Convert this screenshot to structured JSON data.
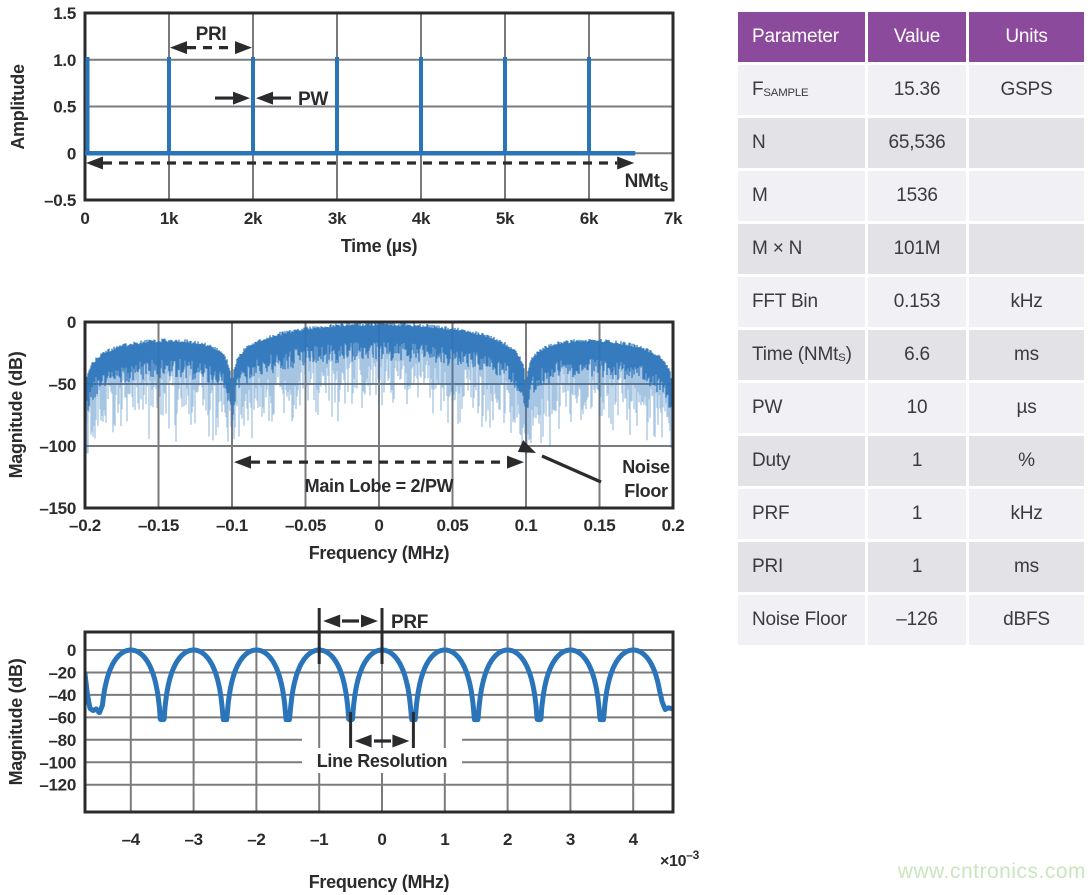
{
  "watermark": {
    "text": "www.cntronics.com",
    "color": "#C9E6BF"
  },
  "colors": {
    "blue": "#2A74BA",
    "grid": "#7A7B7E",
    "axis": "#2B2B2E",
    "text": "#2B2B2E",
    "purple": "#8C4A9C",
    "row_light": "#F1F0F4",
    "row_dark": "#E3E2E7",
    "header_text": "#FFFFFF"
  },
  "table": {
    "columns": [
      "Parameter",
      "Value",
      "Units"
    ],
    "rows": [
      {
        "param": [
          {
            "text": "F"
          },
          {
            "text": "SAMPLE",
            "sub": true
          }
        ],
        "value": "15.36",
        "units": "GSPS"
      },
      {
        "param": [
          {
            "text": "N"
          }
        ],
        "value": "65,536",
        "units": ""
      },
      {
        "param": [
          {
            "text": "M"
          }
        ],
        "value": "1536",
        "units": ""
      },
      {
        "param": [
          {
            "text": "M × N"
          }
        ],
        "value": "101M",
        "units": ""
      },
      {
        "param": [
          {
            "text": "FFT Bin"
          }
        ],
        "value": "0.153",
        "units": "kHz"
      },
      {
        "param": [
          {
            "text": "Time (NMt"
          },
          {
            "text": "S",
            "sub": true
          },
          {
            "text": ")"
          }
        ],
        "value": "6.6",
        "units": "ms"
      },
      {
        "param": [
          {
            "text": "PW"
          }
        ],
        "value": "10",
        "units": "µs"
      },
      {
        "param": [
          {
            "text": "Duty"
          }
        ],
        "value": "1",
        "units": "%"
      },
      {
        "param": [
          {
            "text": "PRF"
          }
        ],
        "value": "1",
        "units": "kHz"
      },
      {
        "param": [
          {
            "text": "PRI"
          }
        ],
        "value": "1",
        "units": "ms"
      },
      {
        "param": [
          {
            "text": "Noise Floor"
          }
        ],
        "value": "–126",
        "units": "dBFS"
      }
    ]
  },
  "chart_data": [
    {
      "id": "pulse-train",
      "type": "line",
      "xlabel": "Time (µs)",
      "ylabel": "Amplitude",
      "xlim": [
        0,
        7000
      ],
      "ylim": [
        -0.5,
        1.5
      ],
      "grid": true,
      "x_ticks": [
        {
          "v": 0,
          "t": "0"
        },
        {
          "v": 1000,
          "t": "1k"
        },
        {
          "v": 2000,
          "t": "2k"
        },
        {
          "v": 3000,
          "t": "3k"
        },
        {
          "v": 4000,
          "t": "4k"
        },
        {
          "v": 5000,
          "t": "5k"
        },
        {
          "v": 6000,
          "t": "6k"
        },
        {
          "v": 7000,
          "t": "7k"
        }
      ],
      "y_ticks": [
        {
          "v": 1.5,
          "t": "1.5"
        },
        {
          "v": 1.0,
          "t": "1.0"
        },
        {
          "v": 0.5,
          "t": "0.5"
        },
        {
          "v": 0,
          "t": "0"
        },
        {
          "v": -0.5,
          "t": "–0.5"
        }
      ],
      "series": [
        {
          "name": "pulse train",
          "pulse_times_us": [
            0,
            1000,
            2000,
            3000,
            4000,
            5000,
            6000
          ],
          "pulse_amplitude": 1.03,
          "baseline_level": 0,
          "baseline_end_us": 6550
        }
      ],
      "annotations": {
        "pri": {
          "text": "PRI",
          "from_us": 1000,
          "to_us": 2000,
          "arrow_y": 1.13
        },
        "pw": {
          "text": "PW",
          "at_us": 2000,
          "arrow_y": 0.59
        },
        "nmts": {
          "text": "NMt",
          "text_sub": "S",
          "from_us": 0,
          "to_us": 6550,
          "arrow_y": -0.1
        }
      }
    },
    {
      "id": "pulse-spectrum",
      "type": "line",
      "xlabel": "Frequency (MHz)",
      "ylabel": "Magnitude (dB)",
      "xlim": [
        -0.2,
        0.2
      ],
      "ylim": [
        -150,
        0
      ],
      "grid": true,
      "x_ticks": [
        {
          "v": -0.2,
          "t": "–0.2"
        },
        {
          "v": -0.15,
          "t": "–0.15"
        },
        {
          "v": -0.1,
          "t": "–0.1"
        },
        {
          "v": -0.05,
          "t": "–0.05"
        },
        {
          "v": 0,
          "t": "0"
        },
        {
          "v": 0.05,
          "t": "0.05"
        },
        {
          "v": 0.1,
          "t": "0.1"
        },
        {
          "v": 0.15,
          "t": "0.15"
        },
        {
          "v": 0.2,
          "t": "0.2"
        }
      ],
      "y_ticks": [
        {
          "v": 0,
          "t": "0"
        },
        {
          "v": -50,
          "t": "–50"
        },
        {
          "v": -100,
          "t": "–100"
        },
        {
          "v": -150,
          "t": "–150"
        }
      ],
      "series": [
        {
          "name": "FFT magnitude",
          "envelope": "20*log10(|sinc(f/0.1)|)",
          "main_lobe_peak_db": 0,
          "first_null_mhz": 0.1,
          "second_null_mhz": 0.2,
          "sidelobe_peak_db": -13,
          "null_depth_db": -108,
          "texture_depth_below_envelope_db": [
            16,
            80
          ]
        }
      ],
      "annotations": {
        "main_lobe": {
          "text": "Main Lobe = 2/PW",
          "from_mhz": -0.1,
          "to_mhz": 0.1,
          "arrow_db": -113,
          "label_db": -137
        },
        "noise_floor": {
          "text_line1": "Noise",
          "text_line2": "Floor",
          "points_to_mhz_db": [
            0.1,
            -104
          ]
        }
      }
    },
    {
      "id": "line-spectrum",
      "type": "line",
      "xlabel": "Frequency (MHz)",
      "x_scale_text": "×10",
      "x_scale_sup": "–3",
      "ylabel": "Magnitude (dB)",
      "xlim_mhz_e3": [
        -4.73,
        4.63
      ],
      "ylim": [
        -145,
        16
      ],
      "grid": true,
      "x_ticks": [
        {
          "v": -4,
          "t": "–4"
        },
        {
          "v": -3,
          "t": "–3"
        },
        {
          "v": -2,
          "t": "–2"
        },
        {
          "v": -1,
          "t": "–1"
        },
        {
          "v": 0,
          "t": "0"
        },
        {
          "v": 1,
          "t": "1"
        },
        {
          "v": 2,
          "t": "2"
        },
        {
          "v": 3,
          "t": "3"
        },
        {
          "v": 4,
          "t": "4"
        }
      ],
      "y_ticks": [
        {
          "v": 0,
          "t": "0"
        },
        {
          "v": -20,
          "t": "–20"
        },
        {
          "v": -40,
          "t": "–40"
        },
        {
          "v": -60,
          "t": "–60"
        },
        {
          "v": -80,
          "t": "–80"
        },
        {
          "v": -100,
          "t": "–100"
        },
        {
          "v": -120,
          "t": "–120"
        }
      ],
      "series": [
        {
          "name": "spectral line fine structure",
          "peaks_at_e3": [
            -4,
            -3,
            -2,
            -1,
            0,
            1,
            2,
            3,
            4
          ],
          "peak_db": 0,
          "nulls_at_e3": [
            -3.5,
            -2.5,
            -1.5,
            -0.5,
            0.5,
            1.5,
            2.5,
            3.5
          ],
          "null_db": -62,
          "shape_db": "60*log10(|cos(pi*f_e3)|) clipped at null_db",
          "left_edge_points": [
            [
              -4.73,
              -21
            ],
            [
              -4.69,
              -40
            ],
            [
              -4.65,
              -52
            ],
            [
              -4.6,
              -54
            ],
            [
              -4.55,
              -52.5
            ],
            [
              -4.5,
              -56
            ],
            [
              -4.45,
              -49
            ]
          ],
          "right_edge_points": [
            [
              4.42,
              -36
            ],
            [
              4.46,
              -46
            ],
            [
              4.51,
              -53
            ],
            [
              4.56,
              -51.5
            ],
            [
              4.63,
              -52.5
            ]
          ]
        }
      ],
      "annotations": {
        "prf": {
          "text": "PRF",
          "from_e3": -1,
          "to_e3": 0
        },
        "line_resolution": {
          "text": "Line Resolution",
          "from_e3": -0.5,
          "to_e3": 0.5
        }
      }
    }
  ]
}
